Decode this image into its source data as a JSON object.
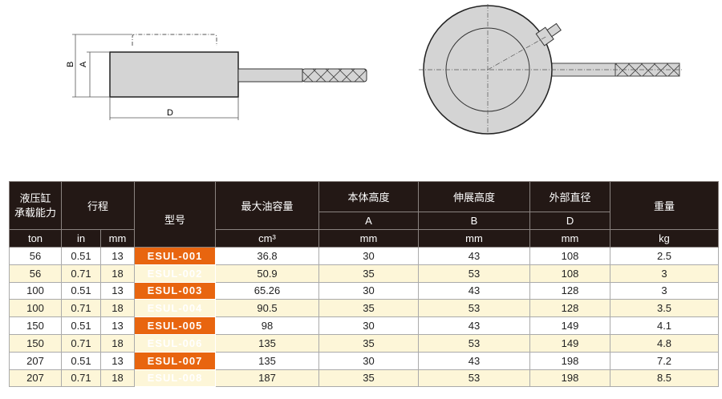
{
  "diagram": {
    "labels": {
      "B": "B",
      "A": "A",
      "D": "D"
    }
  },
  "table": {
    "headers": {
      "capacity": "液压缸\n承载能力",
      "stroke": "行程",
      "model": "型号",
      "oil": "最大油容量",
      "body_height": "本体高度",
      "ext_height": "伸展高度",
      "outer_dia": "外部直径",
      "weight": "重量",
      "A": "A",
      "B": "B",
      "D": "D"
    },
    "units": {
      "capacity": "ton",
      "stroke_in": "in",
      "stroke_mm": "mm",
      "oil": "cm³",
      "A": "mm",
      "B": "mm",
      "D": "mm",
      "weight": "kg"
    },
    "rows": [
      [
        "56",
        "0.51",
        "13",
        "ESUL-001",
        "36.8",
        "30",
        "43",
        "108",
        "2.5"
      ],
      [
        "56",
        "0.71",
        "18",
        "ESUL-002",
        "50.9",
        "35",
        "53",
        "108",
        "3"
      ],
      [
        "100",
        "0.51",
        "13",
        "ESUL-003",
        "65.26",
        "30",
        "43",
        "128",
        "3"
      ],
      [
        "100",
        "0.71",
        "18",
        "ESUL-004",
        "90.5",
        "35",
        "53",
        "128",
        "3.5"
      ],
      [
        "150",
        "0.51",
        "13",
        "ESUL-005",
        "98",
        "30",
        "43",
        "149",
        "4.1"
      ],
      [
        "150",
        "0.71",
        "18",
        "ESUL-006",
        "135",
        "35",
        "53",
        "149",
        "4.8"
      ],
      [
        "207",
        "0.51",
        "13",
        "ESUL-007",
        "135",
        "30",
        "43",
        "198",
        "7.2"
      ],
      [
        "207",
        "0.71",
        "18",
        "ESUL-008",
        "187",
        "35",
        "53",
        "198",
        "8.5"
      ]
    ]
  },
  "colors": {
    "header": "#231815",
    "model": "#e8650f",
    "alt_row": "#fdf6d8"
  }
}
